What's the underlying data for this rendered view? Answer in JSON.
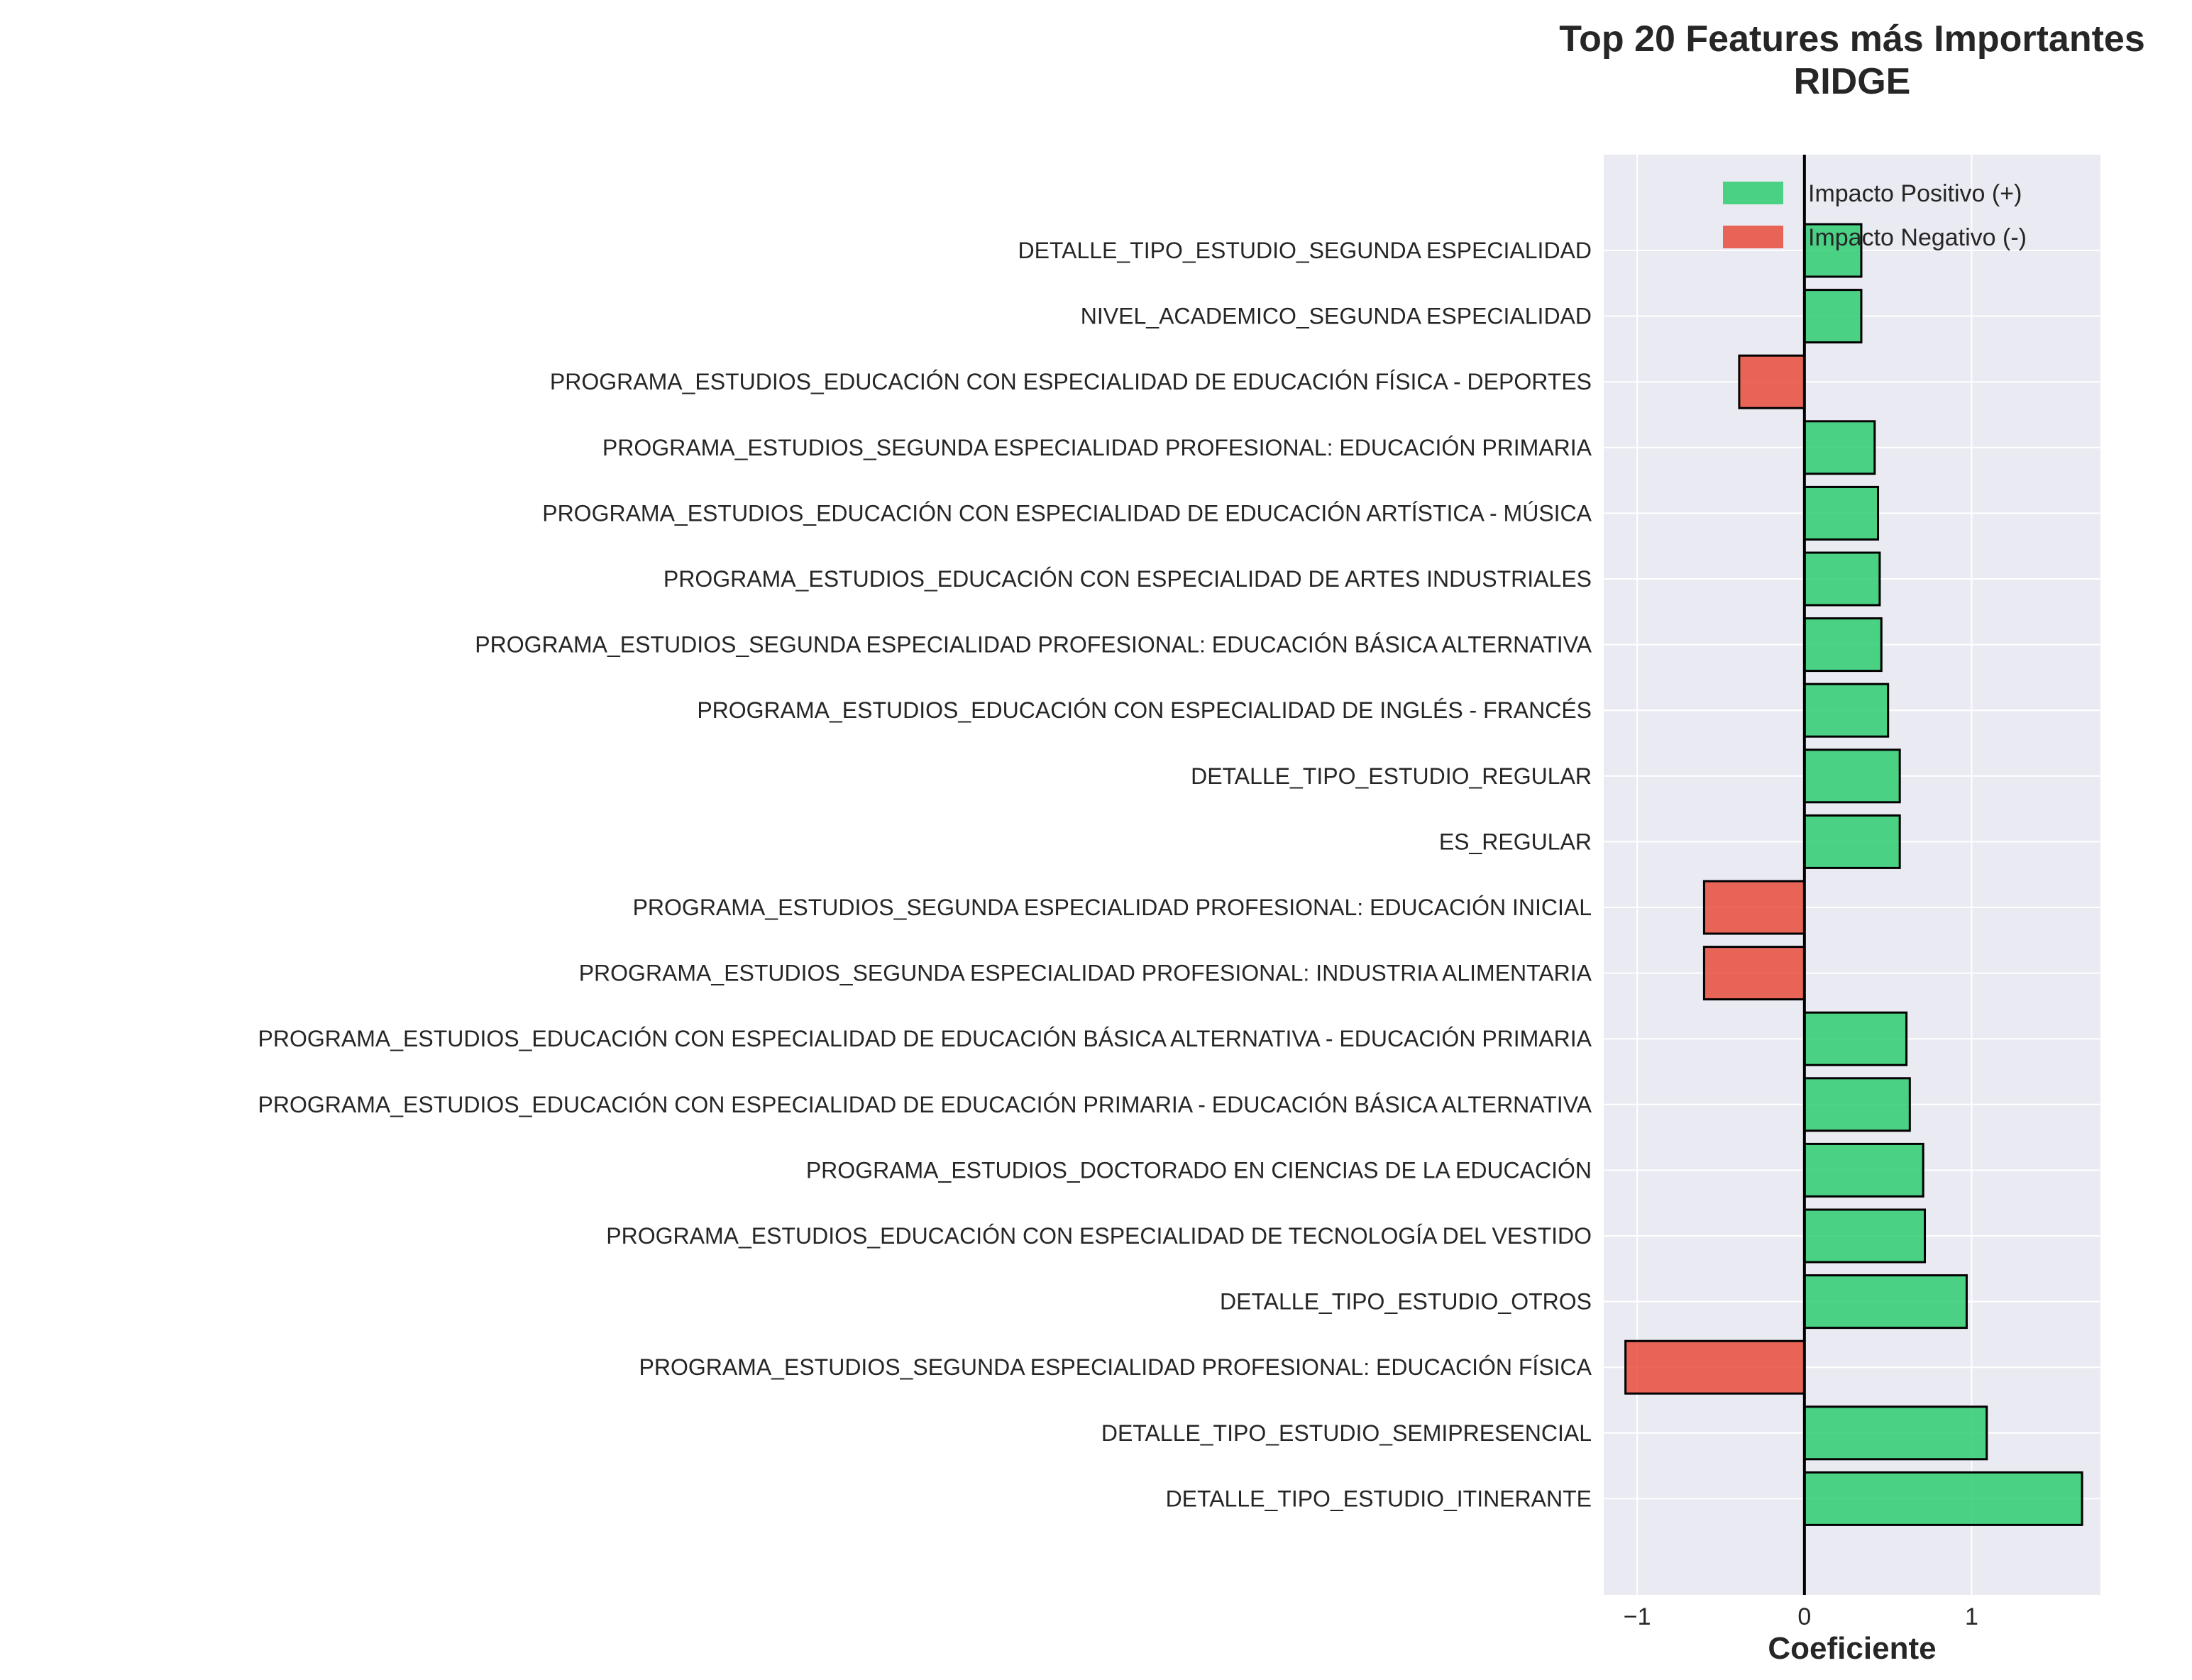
{
  "chart_data": {
    "type": "bar",
    "orientation": "horizontal",
    "title": "Top 20 Features más Importantes",
    "subtitle": "RIDGE",
    "xlabel": "Coeficiente",
    "ylabel": "",
    "xlim": [
      -1.2,
      1.77
    ],
    "xticks": [
      -1,
      0,
      1
    ],
    "xtick_labels": [
      "−1",
      "0",
      "1"
    ],
    "grid": true,
    "legend": {
      "placement": "top-right",
      "entries": [
        {
          "label": "Impacto Positivo (+)",
          "color": "#2ecc71"
        },
        {
          "label": "Impacto Negativo (-)",
          "color": "#e74c3c"
        }
      ]
    },
    "categories": [
      "DETALLE_TIPO_ESTUDIO_SEGUNDA ESPECIALIDAD",
      "NIVEL_ACADEMICO_SEGUNDA ESPECIALIDAD",
      "PROGRAMA_ESTUDIOS_EDUCACIÓN CON ESPECIALIDAD DE EDUCACIÓN FÍSICA - DEPORTES",
      "PROGRAMA_ESTUDIOS_SEGUNDA ESPECIALIDAD PROFESIONAL: EDUCACIÓN PRIMARIA",
      "PROGRAMA_ESTUDIOS_EDUCACIÓN CON ESPECIALIDAD DE EDUCACIÓN ARTÍSTICA - MÚSICA",
      "PROGRAMA_ESTUDIOS_EDUCACIÓN CON ESPECIALIDAD DE ARTES INDUSTRIALES",
      "PROGRAMA_ESTUDIOS_SEGUNDA ESPECIALIDAD PROFESIONAL: EDUCACIÓN BÁSICA ALTERNATIVA",
      "PROGRAMA_ESTUDIOS_EDUCACIÓN CON ESPECIALIDAD DE INGLÉS - FRANCÉS",
      "DETALLE_TIPO_ESTUDIO_REGULAR",
      "ES_REGULAR",
      "PROGRAMA_ESTUDIOS_SEGUNDA ESPECIALIDAD PROFESIONAL: EDUCACIÓN INICIAL",
      "PROGRAMA_ESTUDIOS_SEGUNDA ESPECIALIDAD PROFESIONAL: INDUSTRIA ALIMENTARIA",
      "PROGRAMA_ESTUDIOS_EDUCACIÓN CON ESPECIALIDAD DE EDUCACIÓN BÁSICA ALTERNATIVA - EDUCACIÓN PRIMARIA",
      "PROGRAMA_ESTUDIOS_EDUCACIÓN CON ESPECIALIDAD DE EDUCACIÓN PRIMARIA - EDUCACIÓN BÁSICA ALTERNATIVA",
      "PROGRAMA_ESTUDIOS_DOCTORADO EN CIENCIAS DE LA EDUCACIÓN",
      "PROGRAMA_ESTUDIOS_EDUCACIÓN CON ESPECIALIDAD DE TECNOLOGÍA DEL VESTIDO",
      "DETALLE_TIPO_ESTUDIO_OTROS",
      "PROGRAMA_ESTUDIOS_SEGUNDA ESPECIALIDAD PROFESIONAL: EDUCACIÓN FÍSICA",
      "DETALLE_TIPO_ESTUDIO_SEMIPRESENCIAL",
      "DETALLE_TIPO_ESTUDIO_ITINERANTE"
    ],
    "values": [
      0.34,
      0.34,
      -0.39,
      0.42,
      0.44,
      0.45,
      0.46,
      0.5,
      0.57,
      0.57,
      -0.6,
      -0.6,
      0.61,
      0.63,
      0.71,
      0.72,
      0.97,
      -1.07,
      1.09,
      1.66
    ]
  }
}
